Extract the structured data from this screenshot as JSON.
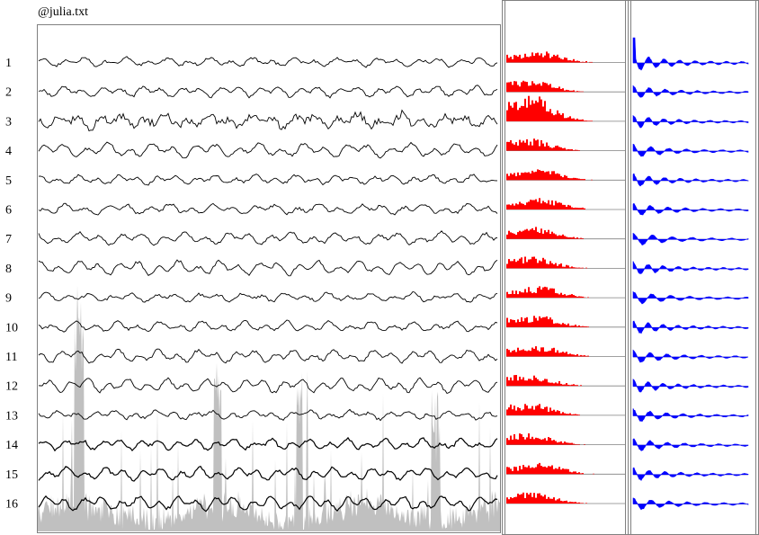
{
  "title": "@julia.txt",
  "chart_data": [
    {
      "panel": "traces",
      "type": "line",
      "channels": [
        "1",
        "2",
        "3",
        "4",
        "5",
        "6",
        "7",
        "8",
        "9",
        "10",
        "11",
        "12",
        "13",
        "14",
        "15",
        "16"
      ],
      "line_color": "#000000",
      "background_area_color": "#c0c0c0",
      "grid": false
    },
    {
      "panel": "spectra",
      "type": "bar",
      "channels": [
        "1",
        "2",
        "3",
        "4",
        "5",
        "6",
        "7",
        "8",
        "9",
        "10",
        "11",
        "12",
        "13",
        "14",
        "15",
        "16"
      ],
      "fill_color": "#ff0000",
      "grid": false
    },
    {
      "panel": "correlations",
      "type": "area",
      "channels": [
        "1",
        "2",
        "3",
        "4",
        "5",
        "6",
        "7",
        "8",
        "9",
        "10",
        "11",
        "12",
        "13",
        "14",
        "15",
        "16"
      ],
      "fill_color": "#0000ff",
      "grid": false
    }
  ]
}
